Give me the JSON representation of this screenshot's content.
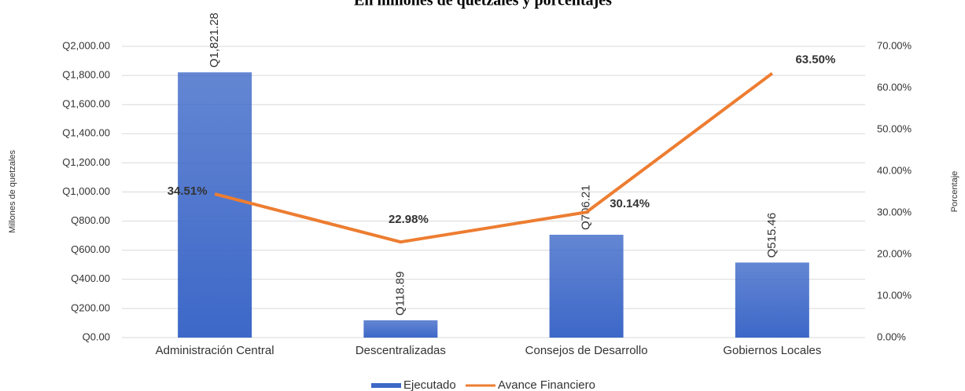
{
  "chart_data": {
    "type": "bar_line",
    "subtitle": "En millones de quetzales y porcentajes",
    "y_label": "Millones de quetzales",
    "y2_label": "Porcentaje",
    "categories": [
      "Administración Central",
      "Descentralizadas",
      "Consejos de Desarrollo",
      "Gobiernos Locales"
    ],
    "series": [
      {
        "name": "Ejecutado",
        "type": "bar",
        "color": "#3d68c8",
        "values": [
          1821.28,
          118.89,
          706.21,
          515.46
        ],
        "value_labels": [
          "Q1,821.28",
          "Q118.89",
          "Q706.21",
          "Q515.46"
        ]
      },
      {
        "name": "Avance Financiero",
        "type": "line",
        "axis": "y2",
        "color": "#ed7d31",
        "values": [
          34.51,
          22.98,
          30.14,
          63.5
        ],
        "value_labels": [
          "34.51%",
          "22.98%",
          "30.14%",
          "63.50%"
        ]
      }
    ],
    "ylim": [
      0,
      2000
    ],
    "yticks": [
      {
        "value": 0,
        "label": "Q0.00"
      },
      {
        "value": 200,
        "label": "Q200.00"
      },
      {
        "value": 400,
        "label": "Q400.00"
      },
      {
        "value": 600,
        "label": "Q600.00"
      },
      {
        "value": 800,
        "label": "Q800.00"
      },
      {
        "value": 1000,
        "label": "Q1,000.00"
      },
      {
        "value": 1200,
        "label": "Q1,200.00"
      },
      {
        "value": 1400,
        "label": "Q1,400.00"
      },
      {
        "value": 1600,
        "label": "Q1,600.00"
      },
      {
        "value": 1800,
        "label": "Q1,800.00"
      },
      {
        "value": 2000,
        "label": "Q2,000.00"
      }
    ],
    "y2lim": [
      0,
      70
    ],
    "y2ticks": [
      {
        "value": 0,
        "label": "0.00%"
      },
      {
        "value": 10,
        "label": "10.00%"
      },
      {
        "value": 20,
        "label": "20.00%"
      },
      {
        "value": 30,
        "label": "30.00%"
      },
      {
        "value": 40,
        "label": "40.00%"
      },
      {
        "value": 50,
        "label": "50.00%"
      },
      {
        "value": 60,
        "label": "60.00%"
      },
      {
        "value": 70,
        "label": "70.00%"
      }
    ],
    "grid": true,
    "legend": "bottom"
  }
}
